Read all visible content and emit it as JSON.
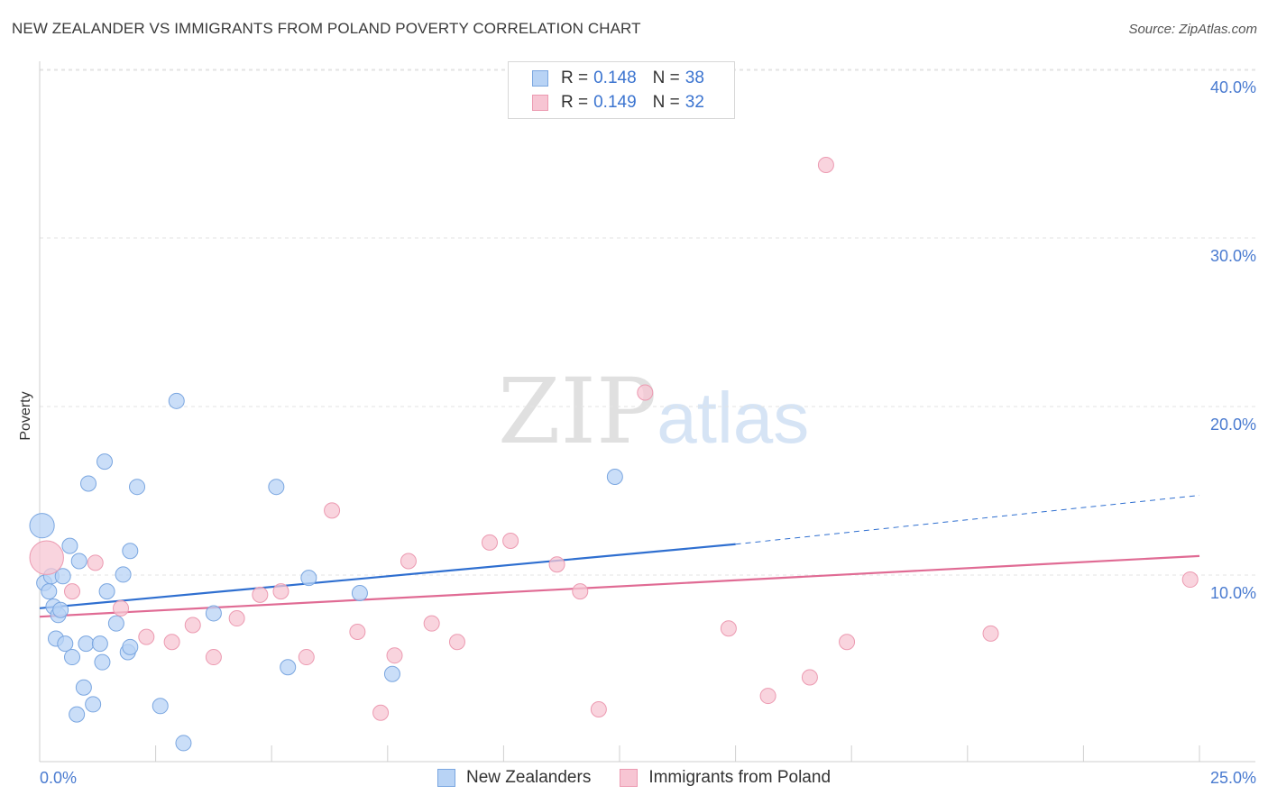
{
  "title": "NEW ZEALANDER VS IMMIGRANTS FROM POLAND POVERTY CORRELATION CHART",
  "source": "Source: ZipAtlas.com",
  "watermark": {
    "zip": "ZIP",
    "atlas": "atlas"
  },
  "legend": {
    "rows": [
      {
        "r_label": "R =",
        "r_value": "0.148",
        "n_label": "N =",
        "n_value": "38"
      },
      {
        "r_label": "R =",
        "r_value": "0.149",
        "n_label": "N =",
        "n_value": "32"
      }
    ]
  },
  "bottom_legend": [
    "New Zealanders",
    "Immigrants from Poland"
  ],
  "colors": {
    "blue_fill": "#b8d3f5",
    "blue_stroke": "#7aa6e0",
    "blue_line": "#2f6fd0",
    "pink_fill": "#f7c5d3",
    "pink_stroke": "#ec9ab1",
    "pink_line": "#e06b94",
    "tick_color": "#4a7bd0",
    "grid": "#e3e3e3"
  },
  "chart_data": {
    "type": "scatter",
    "title": "NEW ZEALANDER VS IMMIGRANTS FROM POLAND POVERTY CORRELATION CHART",
    "xlabel": "",
    "ylabel": "Poverty",
    "xlim": [
      0,
      25
    ],
    "ylim": [
      0,
      40
    ],
    "x_tick_labels": [
      "0.0%",
      "25.0%"
    ],
    "y_ticks": [
      10,
      20,
      30,
      40
    ],
    "y_tick_labels": [
      "10.0%",
      "20.0%",
      "30.0%",
      "40.0%"
    ],
    "series": [
      {
        "name": "New Zealanders",
        "color": "#7aa6e0",
        "points": [
          [
            0.05,
            14.0,
            1.6
          ],
          [
            0.1,
            10.6,
            1
          ],
          [
            0.2,
            10.1,
            1
          ],
          [
            0.25,
            11.0,
            1
          ],
          [
            0.3,
            9.2,
            1
          ],
          [
            0.35,
            7.3,
            1
          ],
          [
            0.4,
            8.7,
            1
          ],
          [
            0.45,
            9.0,
            1
          ],
          [
            0.5,
            11.0,
            1
          ],
          [
            0.55,
            7.0,
            1
          ],
          [
            0.65,
            12.8,
            1
          ],
          [
            0.7,
            6.2,
            1
          ],
          [
            0.8,
            2.8,
            1
          ],
          [
            0.85,
            11.9,
            1
          ],
          [
            0.95,
            4.4,
            1
          ],
          [
            1.0,
            7.0,
            1
          ],
          [
            1.05,
            16.5,
            1
          ],
          [
            1.15,
            3.4,
            1
          ],
          [
            1.3,
            7.0,
            1
          ],
          [
            1.35,
            5.9,
            1
          ],
          [
            1.4,
            17.8,
            1
          ],
          [
            1.45,
            10.1,
            1
          ],
          [
            1.65,
            8.2,
            1
          ],
          [
            1.8,
            11.1,
            1
          ],
          [
            1.9,
            6.5,
            1
          ],
          [
            1.95,
            12.5,
            1
          ],
          [
            1.95,
            6.8,
            1
          ],
          [
            2.1,
            16.3,
            1
          ],
          [
            2.6,
            3.3,
            1
          ],
          [
            2.95,
            21.4,
            1
          ],
          [
            3.1,
            1.1,
            1
          ],
          [
            3.75,
            8.8,
            1
          ],
          [
            5.1,
            16.3,
            1
          ],
          [
            5.35,
            5.6,
            1
          ],
          [
            5.8,
            10.9,
            1
          ],
          [
            6.9,
            10.0,
            1
          ],
          [
            7.6,
            5.2,
            1
          ],
          [
            12.4,
            16.9,
            1
          ]
        ],
        "trend": {
          "x0": 0,
          "y0": 9.1,
          "x1": 15,
          "y1": 12.9,
          "dash_to_x": 25,
          "dash_to_y": 15.8
        }
      },
      {
        "name": "Immigrants from Poland",
        "color": "#ec9ab1",
        "points": [
          [
            0.15,
            12.1,
            2.2
          ],
          [
            0.7,
            10.1,
            1
          ],
          [
            1.2,
            11.8,
            1
          ],
          [
            1.75,
            9.1,
            1
          ],
          [
            2.3,
            7.4,
            1
          ],
          [
            2.85,
            7.1,
            1
          ],
          [
            3.3,
            8.1,
            1
          ],
          [
            3.75,
            6.2,
            1
          ],
          [
            4.25,
            8.5,
            1
          ],
          [
            4.75,
            9.9,
            1
          ],
          [
            5.2,
            10.1,
            1
          ],
          [
            5.75,
            6.2,
            1
          ],
          [
            6.3,
            14.9,
            1
          ],
          [
            6.85,
            7.7,
            1
          ],
          [
            7.35,
            2.9,
            1
          ],
          [
            7.65,
            6.3,
            1
          ],
          [
            7.95,
            11.9,
            1
          ],
          [
            8.45,
            8.2,
            1
          ],
          [
            9.0,
            7.1,
            1
          ],
          [
            9.7,
            13.0,
            1
          ],
          [
            10.15,
            13.1,
            1
          ],
          [
            11.15,
            11.7,
            1
          ],
          [
            11.65,
            10.1,
            1
          ],
          [
            12.05,
            3.1,
            1
          ],
          [
            13.05,
            21.9,
            1
          ],
          [
            14.85,
            7.9,
            1
          ],
          [
            15.7,
            3.9,
            1
          ],
          [
            16.6,
            5.0,
            1
          ],
          [
            16.95,
            35.4,
            1
          ],
          [
            17.4,
            7.1,
            1
          ],
          [
            20.5,
            7.6,
            1
          ],
          [
            24.8,
            10.8,
            1
          ]
        ],
        "trend": {
          "x0": 0,
          "y0": 8.6,
          "x1": 25,
          "y1": 12.2
        }
      }
    ]
  }
}
